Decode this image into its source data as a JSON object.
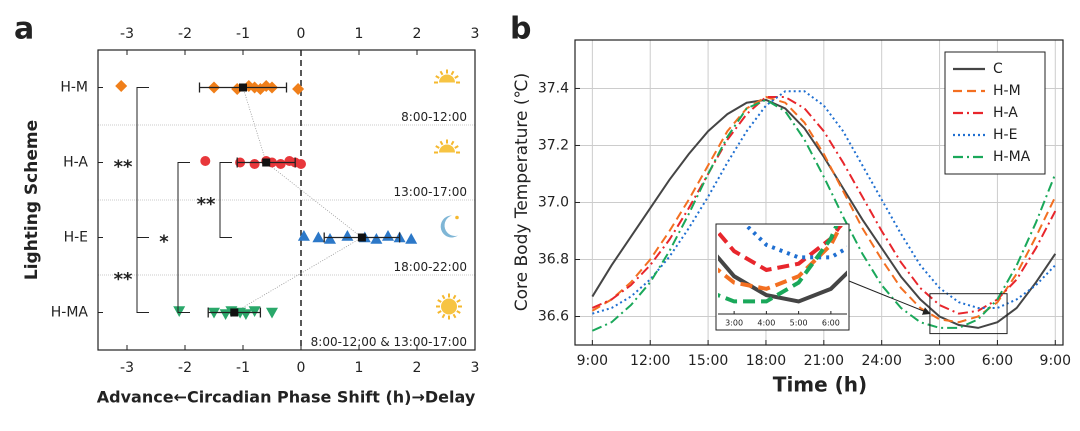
{
  "chart_data": [
    {
      "type": "dot",
      "panel": "a",
      "xlabel": "Advance←Circadian Phase Shift (h)→Delay",
      "ylabel": "Lighting Scheme",
      "categories": [
        "H-M",
        "H-A",
        "H-E",
        "H-MA"
      ],
      "time_windows": [
        "8:00-12:00",
        "13:00-17:00",
        "18:00-22:00",
        "8:00-12:00 & 13:00-17:00"
      ],
      "groups": [
        {
          "color": "#f07f1a",
          "marker": "diamond",
          "values": [
            -3.1,
            -1.5,
            -1.1,
            -0.9,
            -0.8,
            -0.7,
            -0.6,
            -0.5,
            -0.05
          ],
          "mean": -1.0,
          "error": 0.75
        },
        {
          "color": "#e8373b",
          "marker": "circle",
          "values": [
            -1.65,
            -1.05,
            -0.8,
            -0.6,
            -0.5,
            -0.35,
            -0.2,
            -0.1,
            0.0
          ],
          "mean": -0.6,
          "error": 0.5
        },
        {
          "color": "#2c78c8",
          "marker": "triangle-up",
          "values": [
            0.05,
            0.3,
            0.5,
            0.8,
            1.1,
            1.3,
            1.5,
            1.7,
            1.9
          ],
          "mean": 1.05,
          "error": 0.65
        },
        {
          "color": "#2aa86a",
          "marker": "triangle-down",
          "values": [
            -2.1,
            -1.5,
            -1.3,
            -1.2,
            -1.05,
            -0.95,
            -0.8,
            -0.5
          ],
          "mean": -1.15,
          "error": 0.45
        }
      ],
      "annotations": [
        "**",
        "**",
        "*",
        "**"
      ],
      "xlim": [
        -3.5,
        3
      ],
      "xticks": [
        -3,
        -2,
        -1,
        0,
        1,
        2,
        3
      ]
    },
    {
      "type": "line",
      "panel": "b",
      "xlabel": "Time (h)",
      "ylabel": "Core Body Temperature (℃)",
      "x": [
        9,
        10,
        11,
        12,
        13,
        14,
        15,
        16,
        17,
        18,
        19,
        20,
        21,
        22,
        23,
        24,
        25,
        26,
        27,
        28,
        29,
        30,
        31,
        32,
        33
      ],
      "xlim": [
        8.1,
        33.4
      ],
      "xticks": [
        {
          "value": 9,
          "label": "9:00"
        },
        {
          "value": 12,
          "label": "12:00"
        },
        {
          "value": 15,
          "label": "15:00"
        },
        {
          "value": 18,
          "label": "18:00"
        },
        {
          "value": 21,
          "label": "21:00"
        },
        {
          "value": 24,
          "label": "24:00"
        },
        {
          "value": 27,
          "label": "3:00"
        },
        {
          "value": 30,
          "label": "6:00"
        },
        {
          "value": 33,
          "label": "9:00"
        }
      ],
      "ylim": [
        36.5,
        37.57
      ],
      "yticks": [
        36.6,
        36.8,
        {
          "value": 37,
          "label": "37.0"
        },
        37.2,
        37.4
      ],
      "grid": true,
      "legend": "top-right",
      "series": [
        {
          "name": "C",
          "color": "#454545",
          "dash": "solid",
          "values": [
            36.67,
            36.78,
            36.88,
            36.98,
            37.08,
            37.17,
            37.25,
            37.31,
            37.35,
            37.36,
            37.33,
            37.26,
            37.16,
            37.05,
            36.94,
            36.84,
            36.74,
            36.66,
            36.6,
            36.57,
            36.56,
            36.58,
            36.63,
            36.72,
            36.82
          ]
        },
        {
          "name": "H-M",
          "color": "#f36f21",
          "dash": "dashed",
          "values": [
            36.62,
            36.66,
            36.72,
            36.8,
            36.9,
            37.01,
            37.13,
            37.25,
            37.33,
            37.37,
            37.35,
            37.28,
            37.17,
            37.04,
            36.91,
            36.8,
            36.7,
            36.63,
            36.59,
            36.58,
            36.6,
            36.65,
            36.75,
            36.88,
            37.02
          ]
        },
        {
          "name": "H-A",
          "color": "#e8262c",
          "dash": "dashdot",
          "values": [
            36.63,
            36.66,
            36.71,
            36.78,
            36.87,
            36.98,
            37.1,
            37.22,
            37.31,
            37.37,
            37.37,
            37.33,
            37.25,
            37.14,
            37.02,
            36.9,
            36.79,
            36.7,
            36.64,
            36.61,
            36.62,
            36.66,
            36.73,
            36.84,
            36.97
          ]
        },
        {
          "name": "H-E",
          "color": "#1f6fd1",
          "dash": "dotted",
          "values": [
            36.61,
            36.63,
            36.67,
            36.73,
            36.81,
            36.91,
            37.02,
            37.14,
            37.25,
            37.34,
            37.39,
            37.39,
            37.34,
            37.25,
            37.13,
            37.01,
            36.89,
            36.78,
            36.7,
            36.65,
            36.63,
            36.63,
            36.66,
            36.71,
            36.78
          ]
        },
        {
          "name": "H-MA",
          "color": "#1aa85a",
          "dash": "dashdot",
          "values": [
            36.55,
            36.58,
            36.64,
            36.72,
            36.83,
            36.96,
            37.1,
            37.23,
            37.33,
            37.36,
            37.32,
            37.22,
            37.09,
            36.95,
            36.82,
            36.71,
            36.63,
            36.58,
            36.56,
            36.56,
            36.59,
            36.66,
            36.78,
            36.93,
            37.1
          ]
        }
      ],
      "inset": {
        "xlim": [
          26.5,
          30.5
        ],
        "ylim": [
          36.54,
          36.68
        ],
        "xticks": [
          {
            "value": 27,
            "label": "3:00"
          },
          {
            "value": 28,
            "label": "4:00"
          },
          {
            "value": 29,
            "label": "5:00"
          },
          {
            "value": 30,
            "label": "6:00"
          }
        ]
      }
    }
  ]
}
